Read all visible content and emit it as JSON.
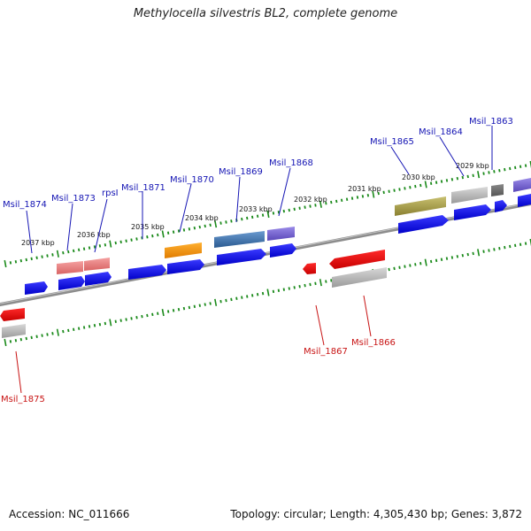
{
  "title": "Methylocella silvestris BL2, complete genome",
  "footer": {
    "accession": "Accession: NC_011666",
    "topology": "Topology: circular; Length: 4,305,430 bp; Genes: 3,872"
  },
  "colors": {
    "upper_label": "#1515b4",
    "lower_label": "#c81414",
    "tick": "#1a8a1a",
    "backbone": "#8c8c8c"
  },
  "kbp_labels": [
    "2037 kbp",
    "2036 kbp",
    "2035 kbp",
    "2034 kbp",
    "2033 kbp",
    "2032 kbp",
    "2031 kbp",
    "2030 kbp",
    "2029 kbp"
  ],
  "gene_labels_top": [
    "Msil_1874",
    "Msil_1873",
    "rpsI",
    "Msil_1871",
    "Msil_1870",
    "Msil_1869",
    "Msil_1868",
    "Msil_1865",
    "Msil_1864",
    "Msil_1863"
  ],
  "gene_labels_bottom": [
    "Msil_1875",
    "Msil_1867",
    "Msil_1866"
  ]
}
